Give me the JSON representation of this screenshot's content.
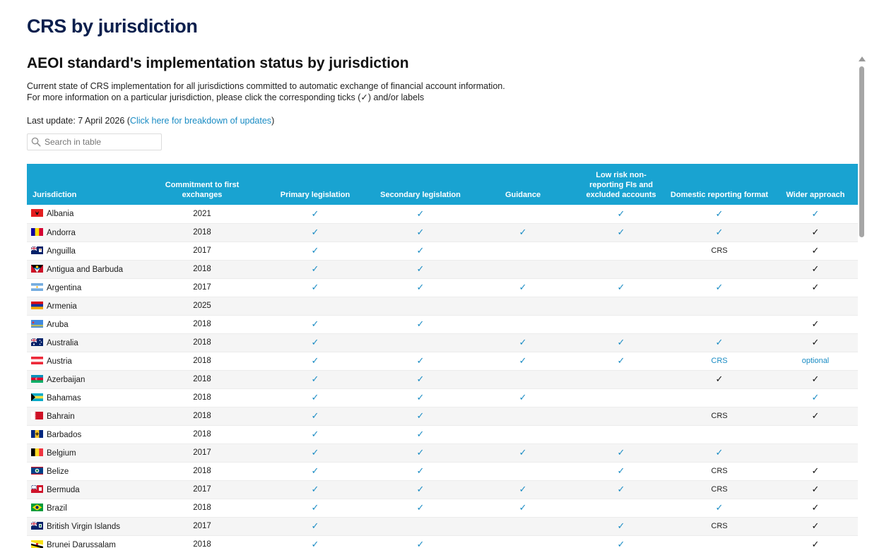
{
  "page_title": "CRS by jurisdiction",
  "section_title": "AEOI standard's implementation status by jurisdiction",
  "description_line1": "Current state of CRS implementation for all jurisdictions committed to automatic exchange of financial account information.",
  "description_line2": "For more information on a particular jurisdiction, please click the corresponding ticks (✓) and/or labels",
  "last_update_text": "Last update: 7 April 2026 (",
  "last_update_link": "Click here for breakdown of updates",
  "last_update_close": ")",
  "search": {
    "placeholder": "Search in table",
    "value": ""
  },
  "table": {
    "headers": {
      "jurisdiction": "Jurisdiction",
      "commitment": "Commitment to first exchanges",
      "primary": "Primary legislation",
      "secondary": "Secondary legislation",
      "guidance": "Guidance",
      "lowrisk": "Low risk non-reporting FIs and excluded accounts",
      "reporting": "Domestic reporting format",
      "wider": "Wider approach"
    },
    "rows": [
      {
        "name": "Albania",
        "year": "2021",
        "flag": "albania-flag",
        "primary": "b",
        "secondary": "b",
        "guidance": "",
        "lowrisk": "b",
        "reporting": "b",
        "wider": "b"
      },
      {
        "name": "Andorra",
        "year": "2018",
        "flag": "andorra-flag",
        "primary": "b",
        "secondary": "b",
        "guidance": "b",
        "lowrisk": "b",
        "reporting": "b",
        "wider": "k"
      },
      {
        "name": "Anguilla",
        "year": "2017",
        "flag": "anguilla-flag",
        "primary": "b",
        "secondary": "b",
        "guidance": "",
        "lowrisk": "",
        "reporting": "CRS",
        "wider": "k"
      },
      {
        "name": "Antigua and Barbuda",
        "year": "2018",
        "flag": "antigua-flag",
        "primary": "b",
        "secondary": "b",
        "guidance": "",
        "lowrisk": "",
        "reporting": "",
        "wider": "k"
      },
      {
        "name": "Argentina",
        "year": "2017",
        "flag": "argentina-flag",
        "primary": "b",
        "secondary": "b",
        "guidance": "b",
        "lowrisk": "b",
        "reporting": "b",
        "wider": "k"
      },
      {
        "name": "Armenia",
        "year": "2025",
        "flag": "armenia-flag",
        "primary": "",
        "secondary": "",
        "guidance": "",
        "lowrisk": "",
        "reporting": "",
        "wider": ""
      },
      {
        "name": "Aruba",
        "year": "2018",
        "flag": "aruba-flag",
        "primary": "b",
        "secondary": "b",
        "guidance": "",
        "lowrisk": "",
        "reporting": "",
        "wider": "k"
      },
      {
        "name": "Australia",
        "year": "2018",
        "flag": "australia-flag",
        "primary": "b",
        "secondary": "",
        "guidance": "b",
        "lowrisk": "b",
        "reporting": "b",
        "wider": "k"
      },
      {
        "name": "Austria",
        "year": "2018",
        "flag": "austria-flag",
        "primary": "b",
        "secondary": "b",
        "guidance": "b",
        "lowrisk": "b",
        "reporting": "CRS*",
        "wider": "optional"
      },
      {
        "name": "Azerbaijan",
        "year": "2018",
        "flag": "azerbaijan-flag",
        "primary": "b",
        "secondary": "b",
        "guidance": "",
        "lowrisk": "",
        "reporting": "k",
        "wider": "k"
      },
      {
        "name": "Bahamas",
        "year": "2018",
        "flag": "bahamas-flag",
        "primary": "b",
        "secondary": "b",
        "guidance": "b",
        "lowrisk": "",
        "reporting": "",
        "wider": "b"
      },
      {
        "name": "Bahrain",
        "year": "2018",
        "flag": "bahrain-flag",
        "primary": "b",
        "secondary": "b",
        "guidance": "",
        "lowrisk": "",
        "reporting": "CRS",
        "wider": "k"
      },
      {
        "name": "Barbados",
        "year": "2018",
        "flag": "barbados-flag",
        "primary": "b",
        "secondary": "b",
        "guidance": "",
        "lowrisk": "",
        "reporting": "",
        "wider": ""
      },
      {
        "name": "Belgium",
        "year": "2017",
        "flag": "belgium-flag",
        "primary": "b",
        "secondary": "b",
        "guidance": "b",
        "lowrisk": "b",
        "reporting": "b",
        "wider": ""
      },
      {
        "name": "Belize",
        "year": "2018",
        "flag": "belize-flag",
        "primary": "b",
        "secondary": "b",
        "guidance": "",
        "lowrisk": "b",
        "reporting": "CRS",
        "wider": "k"
      },
      {
        "name": "Bermuda",
        "year": "2017",
        "flag": "bermuda-flag",
        "primary": "b",
        "secondary": "b",
        "guidance": "b",
        "lowrisk": "b",
        "reporting": "CRS",
        "wider": "k"
      },
      {
        "name": "Brazil",
        "year": "2018",
        "flag": "brazil-flag",
        "primary": "b",
        "secondary": "b",
        "guidance": "b",
        "lowrisk": "",
        "reporting": "b",
        "wider": "k"
      },
      {
        "name": "British Virgin Islands",
        "year": "2017",
        "flag": "bvi-flag",
        "primary": "b",
        "secondary": "",
        "guidance": "",
        "lowrisk": "b",
        "reporting": "CRS",
        "wider": "k"
      },
      {
        "name": "Brunei Darussalam",
        "year": "2018",
        "flag": "brunei-flag",
        "primary": "b",
        "secondary": "b",
        "guidance": "",
        "lowrisk": "b",
        "reporting": "",
        "wider": "k"
      }
    ]
  }
}
